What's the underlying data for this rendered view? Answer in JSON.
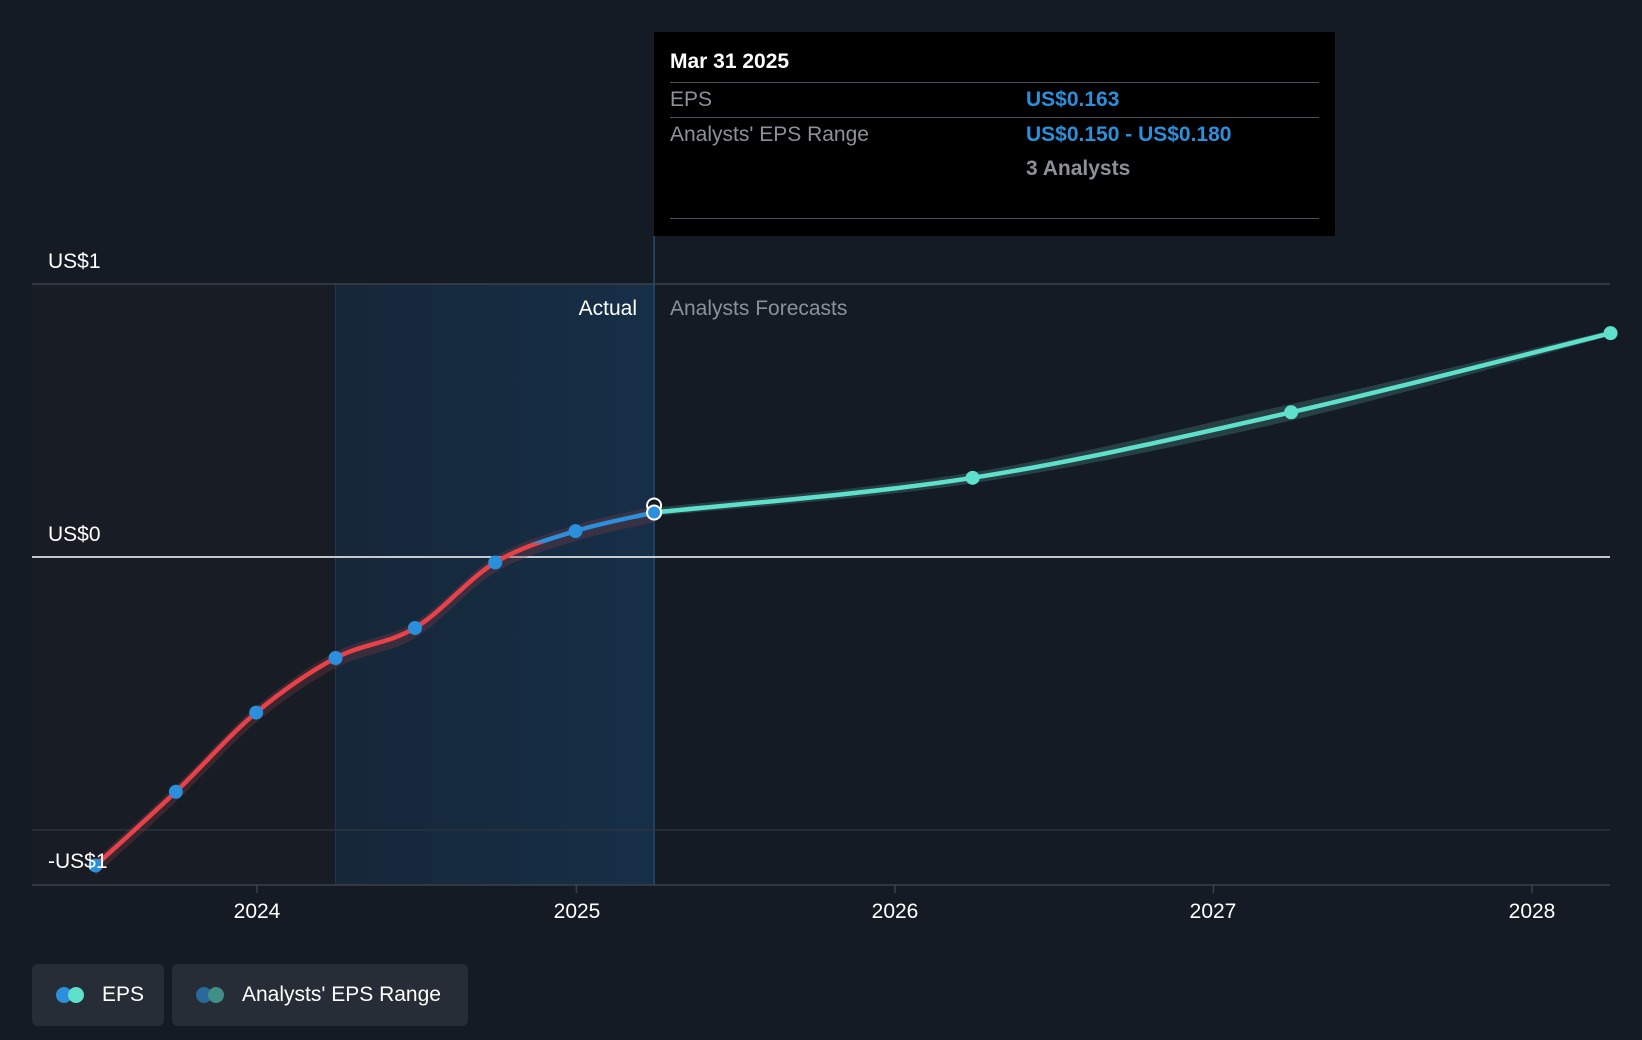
{
  "chart_data": {
    "type": "line",
    "x_axis": {
      "ticks": [
        "2024",
        "2025",
        "2026",
        "2027",
        "2028"
      ]
    },
    "y_axis": {
      "labels": [
        "US$1",
        "US$0",
        "-US$1"
      ],
      "range": [
        -1,
        1
      ]
    },
    "regions": {
      "actual_label": "Actual",
      "forecast_label": "Analysts Forecasts",
      "divider_date": "2025-03-31"
    },
    "series": [
      {
        "name": "EPS",
        "kind": "actual",
        "points": [
          {
            "x": "2023-06-30",
            "y": -1.13
          },
          {
            "x": "2023-09-30",
            "y": -0.86
          },
          {
            "x": "2023-12-31",
            "y": -0.57
          },
          {
            "x": "2024-03-31",
            "y": -0.37
          },
          {
            "x": "2024-06-30",
            "y": -0.26
          },
          {
            "x": "2024-09-30",
            "y": -0.02
          },
          {
            "x": "2024-12-31",
            "y": 0.095
          },
          {
            "x": "2025-03-31",
            "y": 0.163
          }
        ]
      },
      {
        "name": "EPS",
        "kind": "forecast",
        "points": [
          {
            "x": "2025-03-31",
            "y": 0.163
          },
          {
            "x": "2026-03-31",
            "y": 0.29
          },
          {
            "x": "2027-03-31",
            "y": 0.53
          },
          {
            "x": "2028-03-31",
            "y": 0.82
          }
        ]
      },
      {
        "name": "Analysts' EPS Range",
        "kind": "range",
        "points": [
          {
            "x": "2025-03-31",
            "low": 0.15,
            "high": 0.18
          },
          {
            "x": "2026-03-31",
            "low": 0.27,
            "high": 0.31
          },
          {
            "x": "2027-03-31",
            "low": 0.5,
            "high": 0.56
          },
          {
            "x": "2028-03-31",
            "low": 0.81,
            "high": 0.83
          }
        ]
      }
    ],
    "colors": {
      "negative": "#e8414a",
      "actual_positive": "#2b8fdb",
      "forecast": "#5fe0cc",
      "range": "#3f6e6d",
      "background": "#151b24"
    }
  },
  "tooltip": {
    "date": "Mar 31 2025",
    "eps_label": "EPS",
    "eps_value": "US$0.163",
    "range_label": "Analysts' EPS Range",
    "range_value": "US$0.150 - US$0.180",
    "analysts": "3 Analysts"
  },
  "legend": [
    {
      "label": "EPS",
      "colors": [
        "#2b8fdb",
        "#5fe0cc"
      ]
    },
    {
      "label": "Analysts' EPS Range",
      "colors": [
        "#2a6a9a",
        "#3f8f86"
      ]
    }
  ]
}
